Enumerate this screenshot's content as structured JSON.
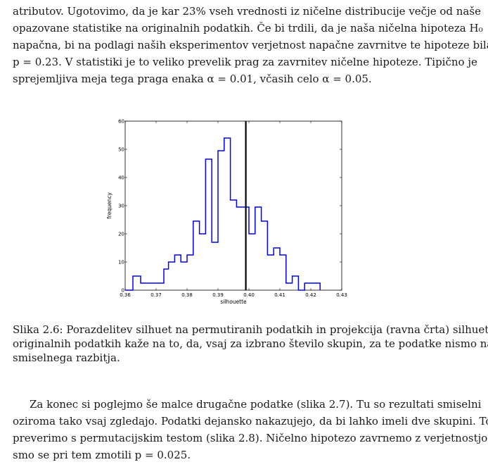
{
  "paragraph_top": {
    "lines": [
      "atributov.  Ugotovimo, da je kar 23% vseh vrednosti iz ničelne distribucije večje od naše",
      "opazovane statistike na originalnih podatkih.  Če bi trdili, da je naša ničelna hipoteza H₀",
      "napačna, bi na podlagi naših eksperimentov verjetnost napačne zavrnitve te hipoteze bila",
      "p = 0.23.  V statistiki je to veliko prevelik prag za zavrnitev ničelne hipoteze.  Tipično je",
      "sprejemljiva meja tega praga enaka α = 0.01, včasih celo α = 0.05."
    ]
  },
  "caption": {
    "lines": [
      "Slika 2.6: Porazdelitev silhuet na permutiranih podatkih in projekcija (ravna črta) silhuete na",
      "originalnih podatkih kaže na to, da, vsaj za izbrano število skupin, za te podatke nismo našli",
      "smiselnega razbitja."
    ]
  },
  "paragraph_bottom": {
    "lines": [
      "Za konec si poglejmo še malce drugačne podatke (slika 2.7).  Tu so rezultati smiselni",
      "oziroma tako vsaj zgledajo.  Podatki dejansko nakazujejo, da bi lahko imeli dve skupini.  To",
      "preverimo s permutacijskim testom (slika 2.8). Ničelno hipotezo zavrnemo z verjetnostjo, da",
      "smo se pri tem zmotili p = 0.025."
    ]
  },
  "chart_data": {
    "type": "histogram",
    "xlabel": "silhouette",
    "ylabel": "frequency",
    "xlim": [
      0.36,
      0.43
    ],
    "ylim": [
      0,
      60
    ],
    "xticks": [
      "0.36",
      "0.37",
      "0.38",
      "0.39",
      "0.40",
      "0.41",
      "0.42",
      "0.43"
    ],
    "yticks": [
      "0",
      "10",
      "20",
      "30",
      "40",
      "50",
      "60"
    ],
    "bin_width": 0.0025,
    "bins": [
      {
        "x0": 0.36,
        "count": 0
      },
      {
        "x0": 0.3625,
        "count": 5
      },
      {
        "x0": 0.365,
        "count": 2.5
      },
      {
        "x0": 0.3675,
        "count": 2.5
      },
      {
        "x0": 0.37,
        "count": 2.5
      },
      {
        "x0": 0.3725,
        "count": 7.5
      },
      {
        "x0": 0.374,
        "count": 10
      },
      {
        "x0": 0.376,
        "count": 12.5
      },
      {
        "x0": 0.378,
        "count": 10
      },
      {
        "x0": 0.38,
        "count": 12.5
      },
      {
        "x0": 0.382,
        "count": 24.5
      },
      {
        "x0": 0.384,
        "count": 20
      },
      {
        "x0": 0.386,
        "count": 46.5
      },
      {
        "x0": 0.388,
        "count": 17
      },
      {
        "x0": 0.39,
        "count": 49.5
      },
      {
        "x0": 0.392,
        "count": 54
      },
      {
        "x0": 0.394,
        "count": 32
      },
      {
        "x0": 0.396,
        "count": 29.5
      },
      {
        "x0": 0.398,
        "count": 29.5
      },
      {
        "x0": 0.4,
        "count": 20
      },
      {
        "x0": 0.402,
        "count": 29.5
      },
      {
        "x0": 0.404,
        "count": 24.5
      },
      {
        "x0": 0.406,
        "count": 12.5
      },
      {
        "x0": 0.408,
        "count": 15
      },
      {
        "x0": 0.41,
        "count": 12.5
      },
      {
        "x0": 0.412,
        "count": 2.5
      },
      {
        "x0": 0.414,
        "count": 5
      },
      {
        "x0": 0.416,
        "count": 0
      },
      {
        "x0": 0.418,
        "count": 2.5
      },
      {
        "x0": 0.42,
        "count": 2.5
      },
      {
        "x0": 0.423,
        "count": 0
      }
    ],
    "reference_line_x": 0.399,
    "colors": {
      "histogram": "#0000ff",
      "reference_line": "#000000"
    }
  }
}
